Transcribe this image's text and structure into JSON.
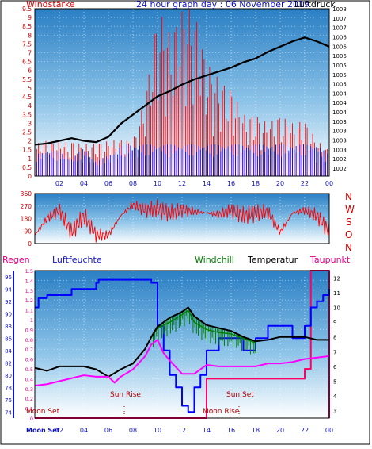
{
  "header": {
    "left_label": "Windstärke",
    "title": "24 hour graph day : 06 November 2019",
    "right_label": "Luftdruck"
  },
  "dir_labels": [
    "N",
    "W",
    "S",
    "O",
    "N"
  ],
  "mid_labels": {
    "regen": "Regen",
    "luftfeuchte": "Luftfeuchte",
    "windchill": "Windchill",
    "temperatur": "Temperatur",
    "taupunkt": "Taupunkt"
  },
  "annotations": {
    "sun_rise": "Sun Rise",
    "sun_set": "Sun Set",
    "moon_set": "Moon Set",
    "moon_rise": "Moon Rise",
    "moon_set_axis": "Moon Set"
  },
  "colors": {
    "background": "#ffffff",
    "frame": "#000000",
    "title_blue": "#1010c0",
    "title_red": "#d00000",
    "wind_red": "#ff0000",
    "wind_blue": "#0000ff",
    "pressure": "#000000",
    "humidity": "#0000ff",
    "temperature": "#000000",
    "windchill": "#008000",
    "dewpoint": "#ff00ff",
    "rain": "#ff0066",
    "plot_top": "#2f86c8",
    "plot_bottom": "#ffffff"
  },
  "chart_data": [
    {
      "type": "line",
      "panel": "wind_pressure",
      "x_ticks": [
        "02",
        "04",
        "06",
        "08",
        "10",
        "12",
        "14",
        "16",
        "18",
        "20",
        "22",
        "00"
      ],
      "y_left_ticks": [
        "0",
        "0.5",
        "1",
        "1.5",
        "2",
        "2.5",
        "3",
        "3.5",
        "4",
        "4.5",
        "5",
        "5.5",
        "6",
        "6.5",
        "7",
        "7.5",
        "8",
        "8.5",
        "9",
        "9.5"
      ],
      "y_left_range": [
        0,
        9.5
      ],
      "y_right_ticks": [
        "1002",
        "1002",
        "1003",
        "1003",
        "1003",
        "1003",
        "1004",
        "1004",
        "1004",
        "1005",
        "1005",
        "1005",
        "1006",
        "1006",
        "1006",
        "1007",
        "1007",
        "1008"
      ],
      "y_right_range": [
        1001.6,
        1008.0
      ],
      "x_range": [
        0,
        24
      ],
      "pressure": {
        "x": [
          0,
          1,
          2,
          3,
          4,
          5,
          6,
          7,
          8,
          9,
          10,
          11,
          12,
          13,
          14,
          15,
          16,
          17,
          18,
          19,
          20,
          21,
          22,
          23,
          24
        ],
        "y": [
          1002.8,
          1002.85,
          1002.95,
          1003.05,
          1002.95,
          1002.9,
          1003.1,
          1003.6,
          1003.95,
          1004.3,
          1004.65,
          1004.85,
          1005.1,
          1005.3,
          1005.45,
          1005.6,
          1005.75,
          1005.95,
          1006.1,
          1006.35,
          1006.55,
          1006.75,
          1006.9,
          1006.75,
          1006.55
        ]
      },
      "wind_speed": {
        "x": [
          0,
          1,
          2,
          3,
          4,
          5,
          6,
          7,
          8,
          9,
          10,
          11,
          12,
          13,
          14,
          15,
          16,
          17,
          18,
          19,
          20,
          21,
          22,
          23,
          24
        ],
        "y": [
          1.2,
          1.5,
          1.4,
          1.0,
          1.6,
          0.8,
          1.2,
          1.7,
          1.9,
          2.4,
          4.0,
          4.5,
          4.0,
          5.0,
          3.8,
          3.2,
          3.0,
          2.8,
          2.9,
          2.5,
          2.2,
          2.0,
          2.2,
          1.8,
          1.2
        ]
      },
      "wind_gust": {
        "x": [
          0,
          1,
          2,
          3,
          4,
          5,
          6,
          7,
          8,
          9,
          10,
          11,
          12,
          13,
          14,
          15,
          16,
          17,
          18,
          19,
          20,
          21,
          22,
          23,
          24
        ],
        "y": [
          1.8,
          2.1,
          1.9,
          2.0,
          1.8,
          1.9,
          2.0,
          2.1,
          2.0,
          4.5,
          9.5,
          8.2,
          9.5,
          9.5,
          6.5,
          5.5,
          5.0,
          3.5,
          3.5,
          3.0,
          3.5,
          3.0,
          3.2,
          2.0,
          1.5
        ]
      }
    },
    {
      "type": "line",
      "panel": "wind_direction",
      "x_range": [
        0,
        24
      ],
      "y_ticks": [
        "0",
        "90",
        "180",
        "270",
        "360"
      ],
      "y_range": [
        0,
        360
      ],
      "direction": {
        "x": [
          0,
          1,
          2,
          3,
          4,
          5,
          6,
          7,
          8,
          9,
          10,
          11,
          12,
          13,
          14,
          15,
          16,
          17,
          18,
          19,
          20,
          21,
          22,
          23,
          24
        ],
        "y": [
          60,
          180,
          240,
          80,
          200,
          60,
          60,
          200,
          280,
          240,
          250,
          220,
          240,
          230,
          220,
          210,
          240,
          200,
          220,
          230,
          80,
          220,
          240,
          200,
          90
        ]
      }
    },
    {
      "type": "line",
      "panel": "humidity_temperature",
      "x_ticks": [
        "02",
        "04",
        "06",
        "08",
        "10",
        "12",
        "14",
        "16",
        "18",
        "20",
        "22",
        "00"
      ],
      "x_range": [
        0,
        24
      ],
      "y_left_ticks": [
        "74",
        "76",
        "78",
        "80",
        "82",
        "84",
        "86",
        "88",
        "90",
        "92",
        "94",
        "96"
      ],
      "y_left_range": [
        73,
        97
      ],
      "y_rain_ticks": [
        "0",
        "0.1",
        "0.2",
        "0.3",
        "0.4",
        "0.5",
        "0.6",
        "0.7",
        "0.8",
        "0.9",
        "1",
        "1.1",
        "1.2",
        "1.3",
        "1.4",
        "1.5"
      ],
      "y_rain_range": [
        0,
        1.5
      ],
      "y_right_ticks": [
        "3",
        "4",
        "5",
        "6",
        "7",
        "8",
        "9",
        "10",
        "11",
        "12"
      ],
      "y_right_range": [
        2.5,
        12.5
      ],
      "humidity": {
        "x": [
          0,
          0.3,
          1,
          2,
          3,
          4,
          5,
          5.2,
          6,
          7,
          8,
          9,
          9.5,
          10,
          10.5,
          11,
          11.5,
          12,
          12.5,
          13,
          13.5,
          14,
          14.5,
          15,
          16,
          17,
          18,
          19,
          20,
          21,
          22,
          22.5,
          23,
          23.5,
          24
        ],
        "y": [
          91,
          92.5,
          93,
          93,
          94,
          94,
          95,
          95.5,
          95.5,
          95.5,
          95.5,
          95.5,
          95,
          88,
          84,
          80,
          78,
          75,
          74,
          78,
          80,
          84,
          84,
          86,
          86,
          84,
          86,
          88,
          88,
          86,
          88,
          91,
          92,
          93,
          94
        ]
      },
      "temperature": {
        "x": [
          0,
          1,
          2,
          3,
          4,
          5,
          6,
          7,
          8,
          9,
          9.5,
          10,
          11,
          12,
          12.5,
          13,
          14,
          15,
          16,
          17,
          18,
          19,
          20,
          21,
          22,
          23,
          24
        ],
        "y": [
          5.9,
          5.7,
          6.0,
          6.0,
          6.0,
          5.8,
          5.3,
          5.8,
          6.2,
          7.2,
          8.0,
          8.7,
          9.3,
          9.7,
          10.0,
          9.4,
          8.8,
          8.6,
          8.4,
          8.0,
          7.7,
          7.8,
          8.0,
          8.0,
          8.0,
          7.8,
          7.8
        ]
      },
      "windchill": {
        "x": [
          9.5,
          10,
          11,
          12,
          12.5,
          13,
          14,
          15,
          16,
          17,
          18
        ],
        "y": [
          8.0,
          8.6,
          9.0,
          9.5,
          9.8,
          9.0,
          8.5,
          8.3,
          8.2,
          7.9,
          7.6
        ]
      },
      "dewpoint": {
        "x": [
          0,
          1,
          2,
          3,
          4,
          5,
          6,
          6.5,
          7,
          8,
          9,
          9.5,
          10,
          10.5,
          11,
          12,
          13,
          14,
          15,
          16,
          17,
          18,
          19,
          20,
          21,
          22,
          23,
          24
        ],
        "y": [
          4.7,
          4.8,
          5.0,
          5.2,
          5.4,
          5.3,
          5.3,
          4.9,
          5.3,
          5.8,
          6.7,
          7.5,
          7.8,
          6.9,
          6.4,
          5.5,
          5.5,
          6.1,
          6.0,
          6.0,
          6.0,
          6.0,
          6.2,
          6.2,
          6.3,
          6.5,
          6.6,
          6.7
        ]
      },
      "rain": {
        "x": [
          0,
          14,
          14,
          22,
          22,
          22.5,
          22.5,
          24,
          24
        ],
        "y": [
          0,
          0,
          0.4,
          0.4,
          0.5,
          0.5,
          1.5,
          1.5,
          0
        ]
      }
    }
  ]
}
